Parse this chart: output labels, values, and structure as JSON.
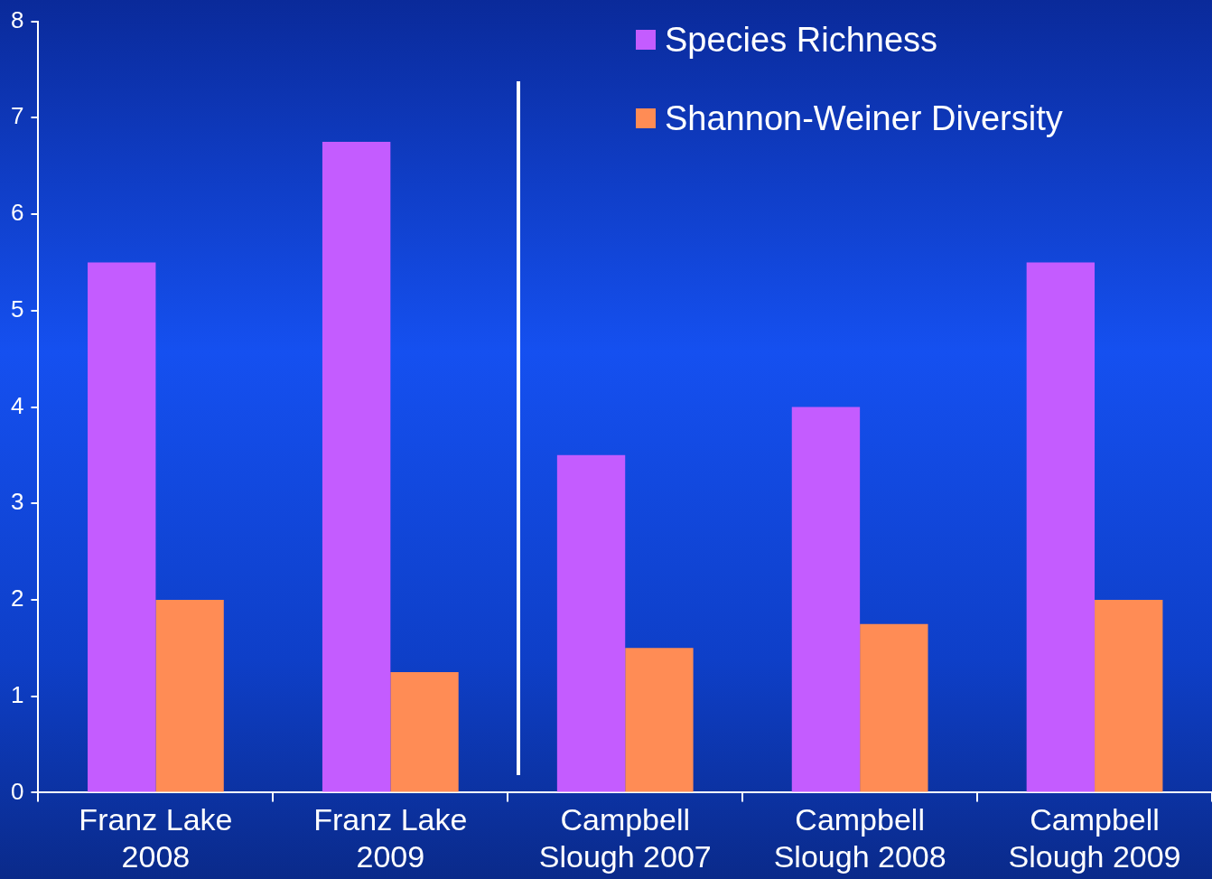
{
  "chart_data": {
    "type": "bar",
    "categories": [
      "Franz Lake 2008",
      "Franz Lake 2009",
      "Campbell Slough 2007",
      "Campbell Slough 2008",
      "Campbell Slough 2009"
    ],
    "series": [
      {
        "name": "Species Richness",
        "color": "#c45cff",
        "values": [
          5.5,
          6.75,
          3.5,
          4,
          5.5
        ]
      },
      {
        "name": "Shannon-Weiner Diversity",
        "color": "#ff8c55",
        "values": [
          2,
          1.25,
          1.5,
          1.75,
          2
        ]
      }
    ],
    "ylim": [
      0,
      8
    ],
    "yticks": [
      0,
      1,
      2,
      3,
      4,
      5,
      6,
      7,
      8
    ],
    "grid": false,
    "legend": "top right"
  }
}
